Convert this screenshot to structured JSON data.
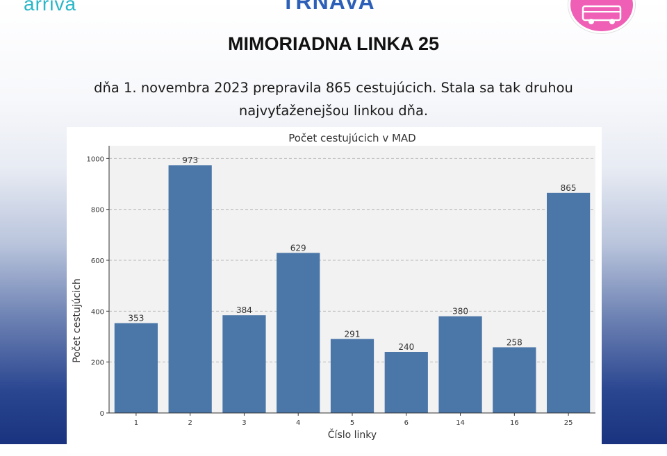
{
  "header": {
    "left_logo": "arriva",
    "city_logo": "TRNAVA",
    "badge_icon": "bus-icon"
  },
  "headline": "MIMORIADNA LINKA 25",
  "subtitle_lines": [
    "dňa 1. novembra 2023 prepravila 865 cestujúcich. Stala sa tak druhou",
    "najvyťaženejšou linkou dňa."
  ],
  "colors": {
    "bar": "#4a76a8",
    "plot_bg": "#f2f2f2",
    "brand_teal": "#29b6c6",
    "brand_pink": "#ef5fb6",
    "city_blue": "#2c5fb8"
  },
  "chart_data": {
    "type": "bar",
    "title": "Počet cestujúcich v MAD",
    "xlabel": "Číslo linky",
    "ylabel": "Počet cestujúcich",
    "categories": [
      "1",
      "2",
      "3",
      "4",
      "5",
      "6",
      "14",
      "16",
      "25"
    ],
    "values": [
      353,
      973,
      384,
      629,
      291,
      240,
      380,
      258,
      865
    ],
    "data_labels": [
      "353",
      "973",
      "384",
      "629",
      "291",
      "240",
      "380",
      "258",
      "865"
    ],
    "ylim": [
      0,
      1050
    ],
    "yticks": [
      0,
      200,
      400,
      600,
      800,
      1000
    ],
    "grid": "y-dashed",
    "legend": "none"
  }
}
